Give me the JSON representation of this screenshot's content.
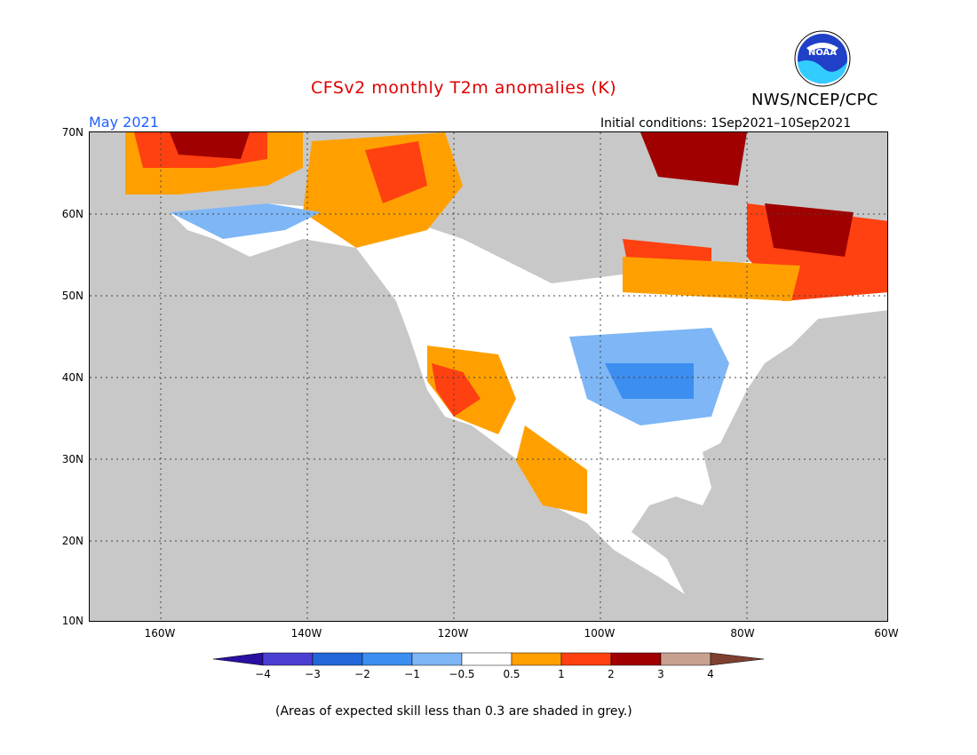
{
  "header": {
    "title": "CFSv2 monthly T2m anomalies (K)",
    "agency": "NWS/NCEP/CPC",
    "month": "May 2021",
    "initial_conditions": "Initial conditions: 1Sep2021–10Sep2021"
  },
  "logo": {
    "text": "NOAA"
  },
  "map": {
    "lat_labels": [
      "70N",
      "60N",
      "50N",
      "40N",
      "30N",
      "20N",
      "10N"
    ],
    "lon_labels": [
      "160W",
      "140W",
      "120W",
      "100W",
      "80W",
      "60W"
    ]
  },
  "colorbar": {
    "ticks": [
      "−4",
      "−3",
      "−2",
      "−1",
      "−0.5",
      "0.5",
      "1",
      "2",
      "3",
      "4"
    ],
    "colors": [
      "#2a0fa0",
      "#4a3fd0",
      "#2266d8",
      "#3c8ef0",
      "#7eb6f6",
      "#ffffff",
      "#ffa000",
      "#ff4010",
      "#a00000",
      "#c8a090",
      "#804030"
    ]
  },
  "footnote": "(Areas of expected skill less than 0.3 are shaded in grey.)"
}
